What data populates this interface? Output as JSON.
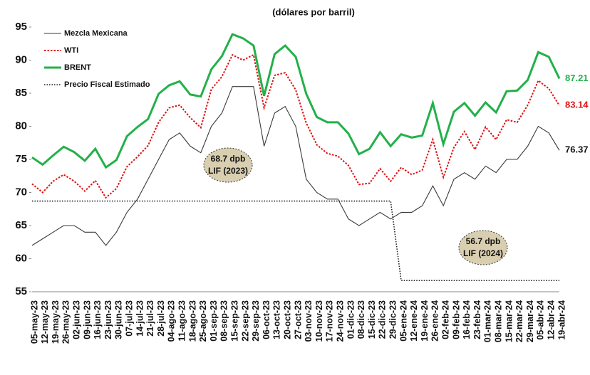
{
  "chart_data": {
    "type": "line",
    "title": "(dólares por barril)",
    "categories": [
      "05-may-23",
      "12-may-23",
      "19-may-23",
      "26-may-23",
      "02-jun-23",
      "09-jun-23",
      "16-jun-23",
      "23-jun-23",
      "30-jun-23",
      "07-jul-23",
      "14-jul-23",
      "21-jul-23",
      "28-jul-23",
      "04-ago-23",
      "11-ago-23",
      "18-ago-23",
      "25-ago-23",
      "01-sep-23",
      "08-sep-23",
      "15-sep-23",
      "22-sep-23",
      "29-sep-23",
      "06-oct-23",
      "13-oct-23",
      "20-oct-23",
      "27-oct-23",
      "03-nov-23",
      "10-nov-23",
      "17-nov-23",
      "24-nov-23",
      "01-dic-23",
      "08-dic-23",
      "15-dic-23",
      "22-dic-23",
      "29-dic-23",
      "05-ene-24",
      "12-ene-24",
      "19-ene-24",
      "26-ene-24",
      "02-feb-24",
      "09-feb-24",
      "16-feb-24",
      "23-feb-24",
      "01-mar-24",
      "08-mar-24",
      "15-mar-24",
      "22-mar-24",
      "29-mar-24",
      "05-abr-24",
      "12-abr-24",
      "19-abr-24"
    ],
    "series": [
      {
        "name": "Mezcla Mexicana",
        "color": "#3a3a3a",
        "line_style": "solid",
        "values": [
          62,
          63,
          64,
          65,
          65,
          64,
          64,
          62,
          64,
          67,
          69,
          72,
          75,
          78,
          79,
          77,
          76,
          80,
          82,
          86,
          86,
          86,
          77,
          82,
          83,
          80,
          72,
          70,
          69,
          69,
          66,
          65,
          66,
          67,
          66,
          67,
          67,
          68,
          71,
          68,
          72,
          73,
          72,
          74,
          73,
          75,
          75,
          77,
          80,
          79,
          76.37
        ]
      },
      {
        "name": "WTI",
        "color": "#e01010",
        "line_style": "dotted",
        "values": [
          71.3,
          70.0,
          71.7,
          72.7,
          71.7,
          70.2,
          71.8,
          69.2,
          70.6,
          73.9,
          75.4,
          77.1,
          80.6,
          82.8,
          83.2,
          81.3,
          79.8,
          85.6,
          87.5,
          90.8,
          90.0,
          90.8,
          82.8,
          87.7,
          88.1,
          85.5,
          80.5,
          77.2,
          75.9,
          75.5,
          74.1,
          71.2,
          71.4,
          73.6,
          71.7,
          73.8,
          72.7,
          73.4,
          78.0,
          72.3,
          76.8,
          79.2,
          76.5,
          79.9,
          78.0,
          81.0,
          80.6,
          83.2,
          86.9,
          85.7,
          83.14
        ]
      },
      {
        "name": "BRENT",
        "color": "#23b04a",
        "line_style": "solid",
        "values": [
          75.3,
          74.2,
          75.6,
          76.9,
          76.1,
          74.8,
          76.6,
          73.8,
          74.9,
          78.5,
          79.9,
          81.1,
          84.9,
          86.2,
          86.8,
          84.8,
          84.5,
          88.6,
          90.6,
          93.9,
          93.3,
          92.2,
          84.6,
          90.9,
          92.2,
          90.5,
          84.9,
          81.4,
          80.6,
          80.6,
          78.9,
          75.8,
          76.6,
          79.1,
          77.0,
          78.8,
          78.3,
          78.6,
          83.5,
          77.3,
          82.2,
          83.5,
          81.6,
          83.6,
          82.1,
          85.3,
          85.4,
          87.0,
          91.2,
          90.5,
          87.21
        ]
      },
      {
        "name": "Precio Fiscal Estimado",
        "color": "#222222",
        "line_style": "dotted",
        "values": [
          68.7,
          68.7,
          68.7,
          68.7,
          68.7,
          68.7,
          68.7,
          68.7,
          68.7,
          68.7,
          68.7,
          68.7,
          68.7,
          68.7,
          68.7,
          68.7,
          68.7,
          68.7,
          68.7,
          68.7,
          68.7,
          68.7,
          68.7,
          68.7,
          68.7,
          68.7,
          68.7,
          68.7,
          68.7,
          68.7,
          68.7,
          68.7,
          68.7,
          68.7,
          68.7,
          56.7,
          56.7,
          56.7,
          56.7,
          56.7,
          56.7,
          56.7,
          56.7,
          56.7,
          56.7,
          56.7,
          56.7,
          56.7,
          56.7,
          56.7,
          56.7
        ]
      }
    ],
    "ylim": [
      55,
      95
    ],
    "yticks": [
      55,
      60,
      65,
      70,
      75,
      80,
      85,
      90,
      95
    ],
    "grid": false,
    "legend": "top-left",
    "annotations": [
      {
        "lines": [
          "68.7 dpb",
          "LIF (2023)"
        ]
      },
      {
        "lines": [
          "56.7 dpb",
          "LIF (2024)"
        ]
      }
    ]
  }
}
